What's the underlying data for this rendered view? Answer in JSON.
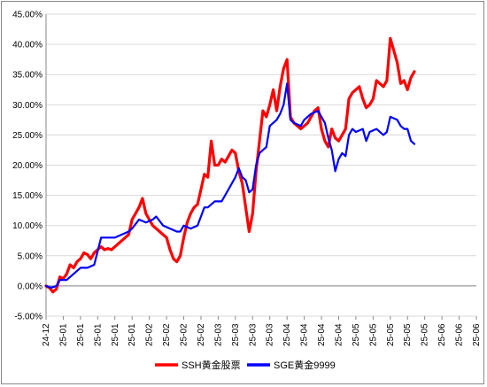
{
  "chart_data": {
    "type": "line",
    "x": [
      "24-12",
      "25-01",
      "25-01",
      "25-01",
      "25-01",
      "25-01",
      "25-02",
      "25-02",
      "25-02",
      "25-02",
      "25-03",
      "25-03",
      "25-03",
      "25-03",
      "25-04",
      "25-04",
      "25-04",
      "25-04",
      "25-05",
      "25-05",
      "25-05",
      "25-05",
      "25-05",
      "25-06",
      "25-06",
      "25-06"
    ],
    "ylim": [
      -5,
      45
    ],
    "yticks": [
      -5,
      0,
      5,
      10,
      15,
      20,
      25,
      30,
      35,
      40,
      45
    ],
    "ytick_labels": [
      "-5.00%",
      "0.00%",
      "5.00%",
      "10.00%",
      "15.00%",
      "20.00%",
      "25.00%",
      "30.00%",
      "35.00%",
      "40.00%",
      "45.00%"
    ],
    "grid": true,
    "legend_position": "bottom",
    "series": [
      {
        "name": "SSH黄金股票",
        "color": "#ff0000",
        "points": [
          [
            0,
            0
          ],
          [
            0.2,
            -0.3
          ],
          [
            0.4,
            -1.0
          ],
          [
            0.6,
            -0.5
          ],
          [
            0.8,
            1.5
          ],
          [
            1.0,
            1.2
          ],
          [
            1.2,
            2.0
          ],
          [
            1.4,
            3.5
          ],
          [
            1.6,
            3.0
          ],
          [
            1.8,
            4.0
          ],
          [
            2.0,
            4.5
          ],
          [
            2.2,
            5.5
          ],
          [
            2.4,
            5.2
          ],
          [
            2.6,
            4.5
          ],
          [
            2.8,
            5.5
          ],
          [
            3.0,
            6.0
          ],
          [
            3.2,
            6.5
          ],
          [
            3.4,
            6.0
          ],
          [
            3.6,
            6.2
          ],
          [
            3.8,
            6.0
          ],
          [
            4.0,
            6.5
          ],
          [
            4.2,
            7.0
          ],
          [
            4.4,
            7.5
          ],
          [
            4.6,
            8.0
          ],
          [
            4.8,
            8.5
          ],
          [
            5.0,
            11.0
          ],
          [
            5.2,
            12.0
          ],
          [
            5.4,
            13.0
          ],
          [
            5.6,
            14.5
          ],
          [
            5.8,
            12.0
          ],
          [
            6.0,
            11.0
          ],
          [
            6.2,
            10.0
          ],
          [
            6.4,
            9.5
          ],
          [
            6.6,
            9.0
          ],
          [
            6.8,
            8.5
          ],
          [
            7.0,
            8.0
          ],
          [
            7.2,
            6.0
          ],
          [
            7.4,
            4.5
          ],
          [
            7.6,
            4.0
          ],
          [
            7.8,
            5.0
          ],
          [
            8.0,
            8.0
          ],
          [
            8.2,
            10.5
          ],
          [
            8.4,
            12.0
          ],
          [
            8.6,
            13.0
          ],
          [
            8.8,
            13.5
          ],
          [
            9.0,
            16.0
          ],
          [
            9.2,
            18.5
          ],
          [
            9.4,
            18.0
          ],
          [
            9.6,
            24.0
          ],
          [
            9.8,
            20.0
          ],
          [
            10.0,
            20.0
          ],
          [
            10.2,
            21.0
          ],
          [
            10.4,
            20.5
          ],
          [
            10.6,
            21.5
          ],
          [
            10.8,
            22.5
          ],
          [
            11.0,
            22.0
          ],
          [
            11.2,
            19.0
          ],
          [
            11.4,
            17.0
          ],
          [
            11.6,
            13.0
          ],
          [
            11.8,
            9.0
          ],
          [
            12.0,
            12.0
          ],
          [
            12.2,
            19.0
          ],
          [
            12.4,
            24.0
          ],
          [
            12.6,
            29.0
          ],
          [
            12.8,
            28.0
          ],
          [
            13.0,
            30.0
          ],
          [
            13.2,
            32.5
          ],
          [
            13.4,
            29.0
          ],
          [
            13.6,
            33.0
          ],
          [
            13.8,
            36.0
          ],
          [
            14.0,
            37.5
          ],
          [
            14.2,
            28.0
          ],
          [
            14.4,
            27.0
          ],
          [
            14.6,
            26.5
          ],
          [
            14.8,
            26.0
          ],
          [
            15.0,
            26.5
          ],
          [
            15.2,
            27.0
          ],
          [
            15.4,
            28.0
          ],
          [
            15.6,
            29.0
          ],
          [
            15.8,
            29.5
          ],
          [
            16.0,
            26.0
          ],
          [
            16.2,
            24.0
          ],
          [
            16.4,
            23.0
          ],
          [
            16.6,
            26.0
          ],
          [
            16.8,
            24.5
          ],
          [
            17.0,
            24.0
          ],
          [
            17.2,
            25.0
          ],
          [
            17.4,
            26.0
          ],
          [
            17.6,
            31.0
          ],
          [
            17.8,
            32.0
          ],
          [
            18.0,
            32.5
          ],
          [
            18.2,
            33.0
          ],
          [
            18.4,
            31.0
          ],
          [
            18.6,
            29.5
          ],
          [
            18.8,
            30.0
          ],
          [
            19.0,
            31.0
          ],
          [
            19.2,
            34.0
          ],
          [
            19.4,
            33.5
          ],
          [
            19.6,
            33.0
          ],
          [
            19.8,
            34.0
          ],
          [
            20.0,
            41.0
          ],
          [
            20.2,
            39.0
          ],
          [
            20.4,
            37.0
          ],
          [
            20.6,
            33.5
          ],
          [
            20.8,
            34.0
          ],
          [
            21.0,
            32.5
          ],
          [
            21.2,
            34.5
          ],
          [
            21.4,
            35.5
          ]
        ]
      },
      {
        "name": "SGE黄金9999",
        "color": "#0000ff",
        "points": [
          [
            0,
            0
          ],
          [
            0.3,
            -0.3
          ],
          [
            0.6,
            0.0
          ],
          [
            0.8,
            1.0
          ],
          [
            1.2,
            1.0
          ],
          [
            1.6,
            2.0
          ],
          [
            2.0,
            3.0
          ],
          [
            2.4,
            3.0
          ],
          [
            2.8,
            3.5
          ],
          [
            3.2,
            8.0
          ],
          [
            3.6,
            8.0
          ],
          [
            4.0,
            8.0
          ],
          [
            4.4,
            8.5
          ],
          [
            4.8,
            9.0
          ],
          [
            5.0,
            9.5
          ],
          [
            5.4,
            11.0
          ],
          [
            5.8,
            10.5
          ],
          [
            6.2,
            11.0
          ],
          [
            6.4,
            11.5
          ],
          [
            6.8,
            10.0
          ],
          [
            7.2,
            9.5
          ],
          [
            7.6,
            9.0
          ],
          [
            7.8,
            9.0
          ],
          [
            8.0,
            10.0
          ],
          [
            8.4,
            9.5
          ],
          [
            8.8,
            10.0
          ],
          [
            9.2,
            13.0
          ],
          [
            9.4,
            13.0
          ],
          [
            9.8,
            14.0
          ],
          [
            10.2,
            14.0
          ],
          [
            10.6,
            16.0
          ],
          [
            11.0,
            18.0
          ],
          [
            11.2,
            19.5
          ],
          [
            11.4,
            18.0
          ],
          [
            11.6,
            17.5
          ],
          [
            11.8,
            15.5
          ],
          [
            12.0,
            16.0
          ],
          [
            12.2,
            20.0
          ],
          [
            12.4,
            22.0
          ],
          [
            12.6,
            22.5
          ],
          [
            12.8,
            23.0
          ],
          [
            13.0,
            26.5
          ],
          [
            13.4,
            27.5
          ],
          [
            13.6,
            28.5
          ],
          [
            13.8,
            30.0
          ],
          [
            14.0,
            33.5
          ],
          [
            14.2,
            27.5
          ],
          [
            14.4,
            27.0
          ],
          [
            14.8,
            26.5
          ],
          [
            15.0,
            27.5
          ],
          [
            15.4,
            28.5
          ],
          [
            15.8,
            29.0
          ],
          [
            16.2,
            27.0
          ],
          [
            16.4,
            24.5
          ],
          [
            16.6,
            22.5
          ],
          [
            16.8,
            19.0
          ],
          [
            17.0,
            21.0
          ],
          [
            17.2,
            22.0
          ],
          [
            17.4,
            21.5
          ],
          [
            17.6,
            25.0
          ],
          [
            17.8,
            26.0
          ],
          [
            18.0,
            25.5
          ],
          [
            18.4,
            26.0
          ],
          [
            18.6,
            24.0
          ],
          [
            18.8,
            25.5
          ],
          [
            19.2,
            26.0
          ],
          [
            19.6,
            25.0
          ],
          [
            19.8,
            25.5
          ],
          [
            20.0,
            28.0
          ],
          [
            20.4,
            27.5
          ],
          [
            20.6,
            26.5
          ],
          [
            20.8,
            26.0
          ],
          [
            21.0,
            26.0
          ],
          [
            21.2,
            24.0
          ],
          [
            21.4,
            23.5
          ]
        ]
      }
    ]
  }
}
